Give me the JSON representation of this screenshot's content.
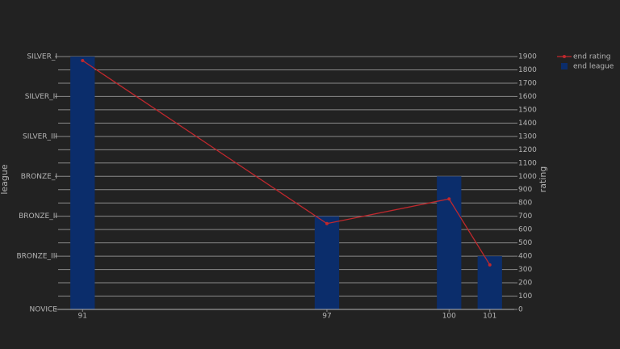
{
  "chart_data": {
    "type": "bar-line",
    "x": [
      91,
      97,
      100,
      101
    ],
    "xlim": [
      90.4,
      101.6
    ],
    "xticks": [
      91,
      97,
      100,
      101
    ],
    "ylabel": "league",
    "y2label": "rating",
    "ylim": [
      0,
      1900
    ],
    "yticks": [
      {
        "value": 0,
        "label": "NOVICE"
      },
      {
        "value": 400,
        "label": "BRONZE_III"
      },
      {
        "value": 700,
        "label": "BRONZE_II"
      },
      {
        "value": 1000,
        "label": "BRONZE_I"
      },
      {
        "value": 1300,
        "label": "SILVER_III"
      },
      {
        "value": 1600,
        "label": "SILVER_II"
      },
      {
        "value": 1900,
        "label": "SILVER_I"
      }
    ],
    "y2lim": [
      0,
      1900
    ],
    "y2ticks": [
      0,
      100,
      200,
      300,
      400,
      500,
      600,
      700,
      800,
      900,
      1000,
      1100,
      1200,
      1300,
      1400,
      1500,
      1600,
      1700,
      1800,
      1900
    ],
    "grid": true,
    "legend": "top-right",
    "series": [
      {
        "name": "end rating",
        "type": "line",
        "axis": "y2",
        "color": "#c0282d",
        "values": [
          1870,
          645,
          830,
          335
        ]
      },
      {
        "name": "end league",
        "type": "bar",
        "axis": "y",
        "color": "#0b2d6b",
        "values": [
          1900,
          700,
          1000,
          400
        ]
      }
    ]
  }
}
